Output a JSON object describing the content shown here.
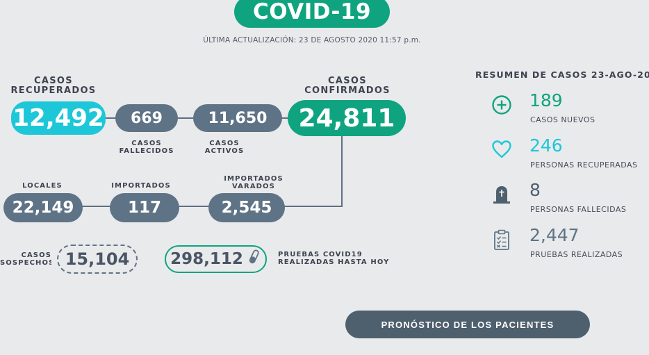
{
  "header": {
    "title": "COVID-19",
    "updated": "ÚLTIMA ACTUALIZACIÓN: 23 DE AGOSTO 2020 11:57 p.m."
  },
  "flow": {
    "recuperados": {
      "label_line1": "CASOS",
      "label_line2": "RECUPERADOS",
      "value": "12,492"
    },
    "fallecidos": {
      "value": "669",
      "label_line1": "CASOS",
      "label_line2": "FALLECIDOS"
    },
    "activos": {
      "value": "11,650",
      "label_line1": "CASOS",
      "label_line2": "ACTIVOS"
    },
    "confirmados": {
      "label_line1": "CASOS",
      "label_line2": "CONFIRMADOS",
      "value": "24,811"
    },
    "locales": {
      "label": "LOCALES",
      "value": "22,149"
    },
    "importados": {
      "label": "IMPORTADOS",
      "value": "117"
    },
    "importados_varados": {
      "label_line1": "IMPORTADOS",
      "label_line2": "VARADOS",
      "value": "2,545"
    },
    "sospechosos": {
      "label_line1": "CASOS",
      "label_line2": "SOSPECHOSOS",
      "value": "15,104"
    },
    "pruebas": {
      "value": "298,112",
      "label_line1": "PRUEBAS COVID19",
      "label_line2": "REALIZADAS HASTA HOY"
    }
  },
  "resumen": {
    "title": "RESUMEN DE CASOS 23-AGO-20",
    "items": [
      {
        "icon": "plus-circle-icon",
        "value": "189",
        "label": "CASOS NUEVOS",
        "color": "#0fa47f"
      },
      {
        "icon": "heart-icon",
        "value": "246",
        "label": "PERSONAS RECUPERADAS",
        "color": "#1dc7d8"
      },
      {
        "icon": "tombstone-icon",
        "value": "8",
        "label": "PERSONAS FALLECIDAS",
        "color": "#4e5f6e"
      },
      {
        "icon": "clipboard-icon",
        "value": "2,447",
        "label": "PRUEBAS REALIZADAS",
        "color": "#5f7386"
      }
    ]
  },
  "button": {
    "label": "PRONÓSTICO DE LOS PACIENTES"
  },
  "colors": {
    "accent": "#0fa47f",
    "cyan": "#1dc7d8",
    "slate": "#5f7386",
    "background": "#e9eaec"
  }
}
